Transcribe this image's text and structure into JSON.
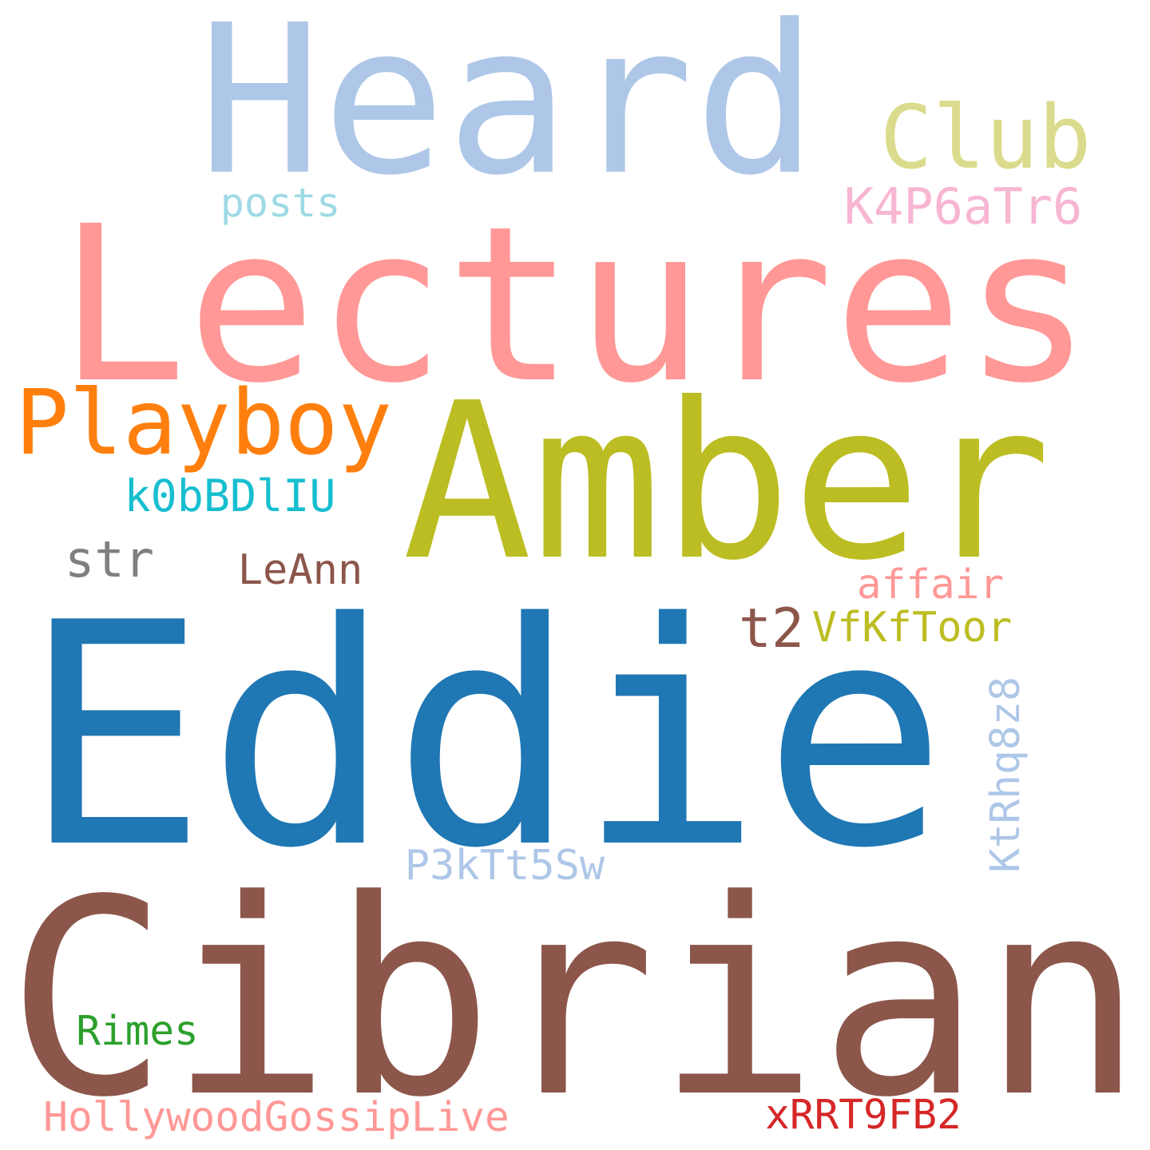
{
  "words": [
    {
      "key": "heard",
      "text": "Heard",
      "color": "#aec7e8"
    },
    {
      "key": "club",
      "text": "Club",
      "color": "#dbdb8d"
    },
    {
      "key": "posts",
      "text": "posts",
      "color": "#9edae5"
    },
    {
      "key": "k4p6",
      "text": "K4P6aTr6",
      "color": "#f7b6d2"
    },
    {
      "key": "lectures",
      "text": "Lectures",
      "color": "#ff9896"
    },
    {
      "key": "playboy",
      "text": "Playboy",
      "color": "#ff7f0e"
    },
    {
      "key": "amber",
      "text": "Amber",
      "color": "#bcbd22"
    },
    {
      "key": "k0bbd",
      "text": "k0bBDlIU",
      "color": "#17becf"
    },
    {
      "key": "str",
      "text": "str",
      "color": "#7f7f7f"
    },
    {
      "key": "leann",
      "text": "LeAnn",
      "color": "#8c564b"
    },
    {
      "key": "affair",
      "text": "affair",
      "color": "#ff9896"
    },
    {
      "key": "t2",
      "text": "t2",
      "color": "#8c564b"
    },
    {
      "key": "vfkf",
      "text": "VfKfToor",
      "color": "#bcbd22"
    },
    {
      "key": "eddie",
      "text": "Eddie",
      "color": "#1f77b4"
    },
    {
      "key": "ktrhq",
      "text": "KtRhq8z8",
      "color": "#aec7e8"
    },
    {
      "key": "p3kt",
      "text": "P3kTt5Sw",
      "color": "#aec7e8"
    },
    {
      "key": "cibrian",
      "text": "Cibrian",
      "color": "#8c564b"
    },
    {
      "key": "rimes",
      "text": "Rimes",
      "color": "#2ca02c"
    },
    {
      "key": "hollywood",
      "text": "HollywoodGossipLive",
      "color": "#ff9896"
    },
    {
      "key": "xrrt",
      "text": "xRRT9FB2",
      "color": "#d62728"
    }
  ]
}
